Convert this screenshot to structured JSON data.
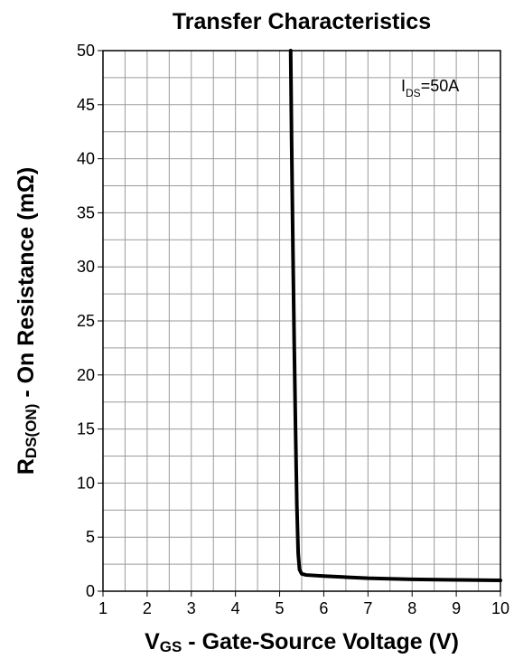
{
  "chart_data": {
    "type": "line",
    "title": "Transfer Characteristics",
    "xlabel": {
      "main": "V",
      "sub": "GS",
      "rest": " - Gate-Source Voltage (V)"
    },
    "ylabel": {
      "main": "R",
      "sub": "DS(ON)",
      "rest": " - On Resistance (mΩ)"
    },
    "xlim": [
      1,
      10
    ],
    "ylim": [
      0,
      50
    ],
    "x_ticks": [
      1,
      2,
      3,
      4,
      5,
      6,
      7,
      8,
      9,
      10
    ],
    "y_ticks": [
      0,
      5,
      10,
      15,
      20,
      25,
      30,
      35,
      40,
      45,
      50
    ],
    "grid": true,
    "annotation": {
      "main": "I",
      "sub": "DS",
      "rest": "=50A",
      "placement": "top-right"
    },
    "series": [
      {
        "line_color": "#000000",
        "x": [
          5.25,
          5.27,
          5.3,
          5.33,
          5.36,
          5.39,
          5.42,
          5.45,
          5.5,
          5.6,
          6.0,
          6.5,
          7.0,
          8.0,
          9.0,
          10.0
        ],
        "y": [
          50,
          42,
          32,
          23,
          15,
          8,
          3.5,
          2.0,
          1.6,
          1.5,
          1.4,
          1.3,
          1.2,
          1.1,
          1.05,
          1.0
        ]
      }
    ]
  }
}
